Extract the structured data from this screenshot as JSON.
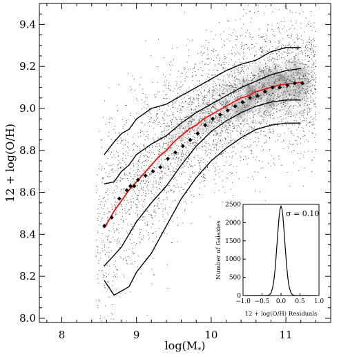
{
  "chart_data": {
    "type": "scatter",
    "xlabel_main": "log(M",
    "xlabel_sub": "*",
    "xlabel_close": ")",
    "ylabel": "12 + log(O/H)",
    "xlim": [
      7.7,
      11.6
    ],
    "ylim": [
      7.98,
      9.5
    ],
    "xticks": [
      8,
      9,
      10,
      11
    ],
    "yticks": [
      8.0,
      8.2,
      8.4,
      8.6,
      8.8,
      9.0,
      9.2,
      9.4
    ],
    "xtick_labels": [
      "8",
      "9",
      "10",
      "11"
    ],
    "ytick_labels": [
      "8.0",
      "8.2",
      "8.4",
      "8.6",
      "8.8",
      "9.0",
      "9.2",
      "9.4"
    ],
    "median_points": {
      "x": [
        8.57,
        8.67,
        8.77,
        8.87,
        8.92,
        8.97,
        9.02,
        9.12,
        9.22,
        9.32,
        9.42,
        9.52,
        9.62,
        9.72,
        9.82,
        9.92,
        10.02,
        10.12,
        10.22,
        10.32,
        10.42,
        10.52,
        10.62,
        10.72,
        10.82,
        10.92,
        11.02,
        11.12,
        11.22
      ],
      "y": [
        8.44,
        8.48,
        8.57,
        8.61,
        8.63,
        8.63,
        8.66,
        8.68,
        8.7,
        8.72,
        8.76,
        8.79,
        8.82,
        8.85,
        8.88,
        8.92,
        8.95,
        8.97,
        8.99,
        9.01,
        9.03,
        9.05,
        9.06,
        9.08,
        9.1,
        9.1,
        9.11,
        9.12,
        9.12
      ]
    },
    "fit_curve": {
      "color": "#ee1111",
      "x": [
        8.57,
        8.7,
        8.8,
        8.9,
        9.0,
        9.1,
        9.2,
        9.3,
        9.4,
        9.5,
        9.6,
        9.7,
        9.8,
        9.9,
        10.0,
        10.1,
        10.2,
        10.3,
        10.4,
        10.5,
        10.6,
        10.7,
        10.8,
        10.9,
        11.0,
        11.1,
        11.22
      ],
      "y": [
        8.43,
        8.51,
        8.56,
        8.61,
        8.65,
        8.69,
        8.73,
        8.77,
        8.8,
        8.84,
        8.87,
        8.9,
        8.92,
        8.95,
        8.97,
        8.99,
        9.01,
        9.03,
        9.05,
        9.06,
        9.08,
        9.09,
        9.1,
        9.11,
        9.115,
        9.12,
        9.125
      ]
    },
    "contours": [
      {
        "x": [
          8.57,
          8.7,
          8.8,
          8.9,
          9.0,
          9.2,
          9.4,
          9.6,
          9.8,
          10.0,
          10.2,
          10.4,
          10.6,
          10.8,
          11.0,
          11.2
        ],
        "y": [
          8.78,
          8.84,
          8.88,
          8.9,
          8.95,
          9.0,
          9.02,
          9.06,
          9.1,
          9.14,
          9.18,
          9.21,
          9.23,
          9.27,
          9.29,
          9.29
        ]
      },
      {
        "x": [
          8.57,
          8.7,
          8.8,
          8.9,
          9.0,
          9.2,
          9.4,
          9.6,
          9.8,
          10.0,
          10.2,
          10.4,
          10.6,
          10.8,
          11.0,
          11.2
        ],
        "y": [
          8.64,
          8.65,
          8.7,
          8.73,
          8.78,
          8.83,
          8.87,
          8.93,
          8.98,
          9.02,
          9.06,
          9.1,
          9.13,
          9.16,
          9.18,
          9.19
        ]
      },
      {
        "x": [
          8.57,
          8.7,
          8.8,
          8.9,
          9.0,
          9.2,
          9.4,
          9.6,
          9.8,
          10.0,
          10.2,
          10.4,
          10.6,
          10.8,
          11.0,
          11.2
        ],
        "y": [
          8.25,
          8.3,
          8.34,
          8.4,
          8.46,
          8.55,
          8.63,
          8.73,
          8.82,
          8.89,
          8.94,
          8.98,
          9.01,
          9.03,
          9.04,
          9.04
        ]
      },
      {
        "x": [
          8.57,
          8.7,
          8.8,
          8.9,
          9.0,
          9.2,
          9.4,
          9.6,
          9.8,
          10.0,
          10.2,
          10.4,
          10.6,
          10.8,
          11.0,
          11.2
        ],
        "y": [
          8.18,
          8.11,
          8.13,
          8.15,
          8.22,
          8.31,
          8.44,
          8.57,
          8.67,
          8.75,
          8.81,
          8.86,
          8.9,
          8.92,
          8.93,
          8.93
        ]
      }
    ],
    "inset": {
      "type": "histogram",
      "xlabel": "12 + log(O/H) Residuals",
      "ylabel": "Number of Galaxies",
      "xlim": [
        -1.0,
        1.0
      ],
      "ylim": [
        0,
        2500
      ],
      "xticks": [
        -1.0,
        -0.5,
        0.0,
        0.5,
        1.0
      ],
      "yticks": [
        0,
        500,
        1000,
        1500,
        2000,
        2500
      ],
      "xtick_labels": [
        "−1.0",
        "−0.5",
        "0.0",
        "0.5",
        "1.0"
      ],
      "ytick_labels": [
        "0",
        "500",
        "1000",
        "1500",
        "2000",
        "2500"
      ],
      "sigma_label": "σ = 0.10",
      "sigma": 0.1,
      "peak": 2450
    }
  }
}
